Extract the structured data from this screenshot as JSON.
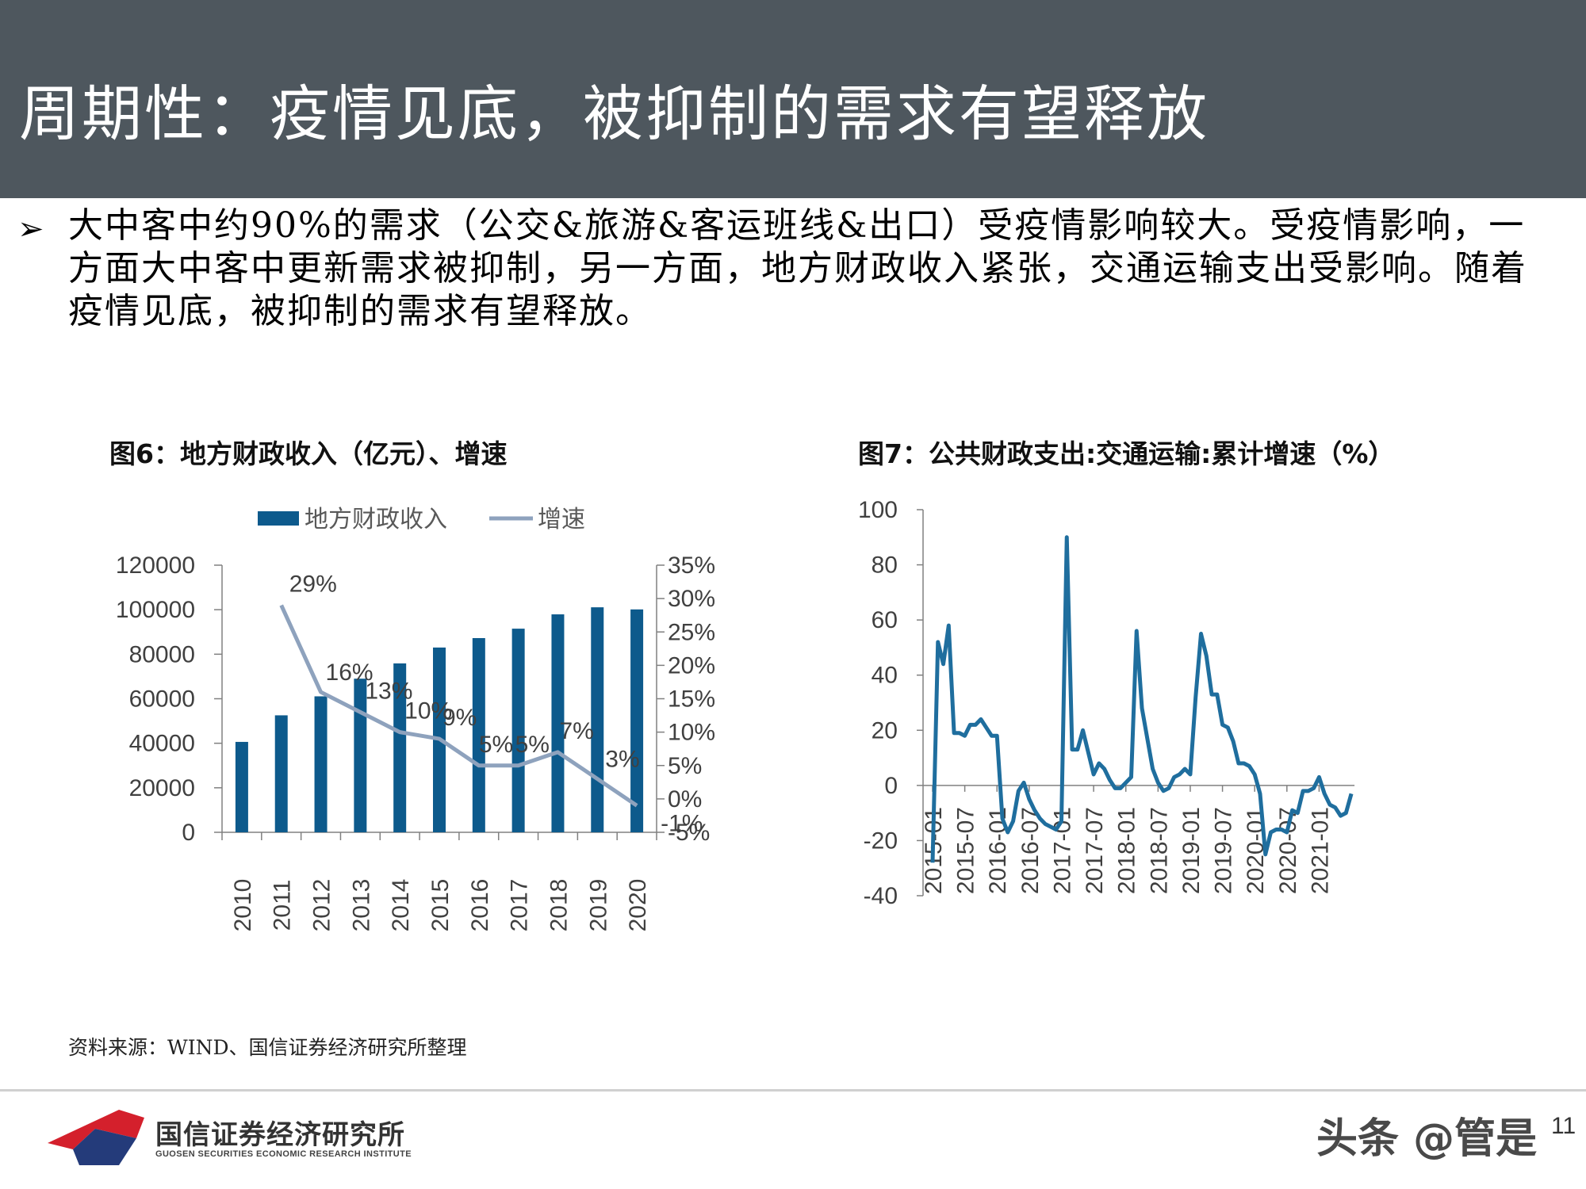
{
  "slide": {
    "title": "周期性：疫情见底，被抑制的需求有望释放",
    "bullet_marker": "➢",
    "bullet_text": "大中客中约90%的需求（公交&旅游&客运班线&出口）受疫情影响较大。受疫情影响，一方面大中客中更新需求被抑制，另一方面，地方财政收入紧张，交通运输支出受影响。随着疫情见底，被抑制的需求有望释放。",
    "source": "资料来源：WIND、国信证券经济研究所整理",
    "logo_name": "国信证券经济研究所",
    "logo_sub": "GUOSEN SECURITIES ECONOMIC RESEARCH INSTITUTE",
    "watermark": "头条 @管是",
    "page_number": "11"
  },
  "colors": {
    "header_bg": "#4e575e",
    "bar": "#0d5a8c",
    "growth_line": "#8ea2bd",
    "line2": "#1f6e9e",
    "logo_red": "#d4202c",
    "logo_navy": "#243b7a"
  },
  "chart_data": [
    {
      "type": "bar",
      "title": "图6：地方财政收入（亿元）、增速",
      "categories": [
        "2010",
        "2011",
        "2012",
        "2013",
        "2014",
        "2015",
        "2016",
        "2017",
        "2018",
        "2019",
        "2020"
      ],
      "series": [
        {
          "name": "地方财政收入",
          "axis": "left",
          "values": [
            40613,
            52547,
            61078,
            69011,
            75877,
            83002,
            87239,
            91469,
            97905,
            101077,
            100124
          ]
        },
        {
          "name": "增速",
          "type": "line",
          "axis": "right",
          "values": [
            null,
            29,
            16,
            13,
            10,
            9,
            5,
            5,
            7,
            3,
            -1
          ],
          "labels": [
            "",
            "29%",
            "16%",
            "13%",
            "10%",
            "9%",
            "5%",
            "5%",
            "7%",
            "3%",
            "-1%"
          ]
        }
      ],
      "y_left": {
        "min": 0,
        "max": 120000,
        "ticks": [
          "0",
          "20000",
          "40000",
          "60000",
          "80000",
          "100000",
          "120000"
        ]
      },
      "y_right": {
        "min": -5,
        "max": 35,
        "ticks": [
          "-5%",
          "0%",
          "5%",
          "10%",
          "15%",
          "20%",
          "25%",
          "30%",
          "35%"
        ]
      },
      "legend_position": "top",
      "grid": false
    },
    {
      "type": "line",
      "title": "图7：公共财政支出:交通运输:累计增速（%）",
      "series": [
        {
          "values": [
            -28,
            52,
            44,
            58,
            19,
            19,
            18,
            22,
            22,
            24,
            21,
            18,
            18,
            -12,
            -17,
            -13,
            -2,
            1,
            -5,
            -9,
            -12,
            -14,
            -15,
            -16,
            -13,
            90,
            13,
            13,
            20,
            12,
            4,
            8,
            6,
            2,
            -1,
            -1,
            1,
            3,
            56,
            28,
            17,
            6,
            1,
            -2,
            -1,
            3,
            4,
            6,
            4,
            32,
            55,
            47,
            33,
            33,
            22,
            21,
            16,
            8,
            8,
            7,
            4,
            -3,
            -25,
            -17,
            -16,
            -16,
            -17,
            -9,
            -10,
            -2,
            -2,
            -1,
            3,
            -3,
            -7,
            -8,
            -11,
            -10,
            -3
          ]
        }
      ],
      "x_start": "2015-01",
      "x_ticks": [
        "2015-01",
        "2015-07",
        "2016-01",
        "2016-07",
        "2017-01",
        "2017-07",
        "2018-01",
        "2018-07",
        "2019-01",
        "2019-07",
        "2020-01",
        "2020-07",
        "2021-01"
      ],
      "y": {
        "min": -40,
        "max": 100,
        "ticks": [
          "-40",
          "-20",
          "0",
          "20",
          "40",
          "60",
          "80",
          "100"
        ]
      },
      "grid": false
    }
  ]
}
